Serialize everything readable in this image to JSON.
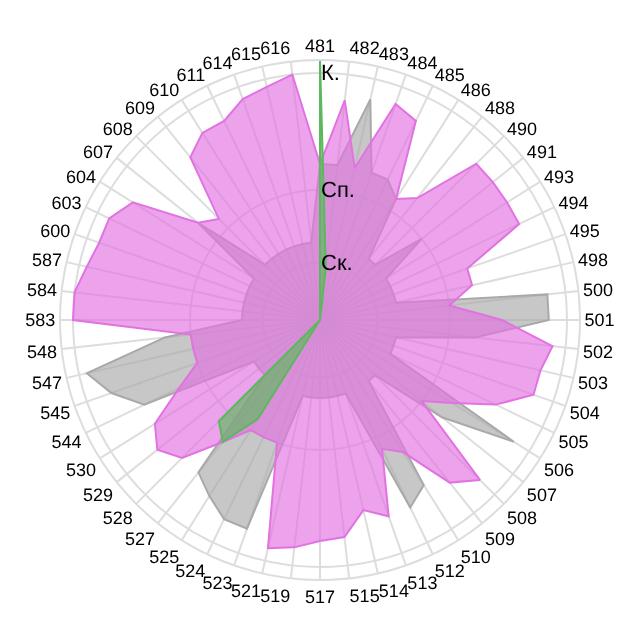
{
  "chart_data": {
    "type": "radar",
    "categories": [
      "481",
      "482",
      "483",
      "484",
      "485",
      "486",
      "488",
      "490",
      "491",
      "493",
      "494",
      "495",
      "498",
      "500",
      "501",
      "502",
      "503",
      "504",
      "505",
      "506",
      "507",
      "508",
      "509",
      "510",
      "512",
      "513",
      "514",
      "515",
      "517",
      "519",
      "521",
      "523",
      "524",
      "525",
      "527",
      "528",
      "529",
      "530",
      "544",
      "545",
      "547",
      "548",
      "583",
      "584",
      "587",
      "600",
      "603",
      "604",
      "607",
      "608",
      "609",
      "610",
      "611",
      "614",
      "615",
      "616"
    ],
    "ylim": [
      0,
      1
    ],
    "yticks": [
      {
        "value": 0.22,
        "label": "Ск."
      },
      {
        "value": 0.5,
        "label": "Сп."
      },
      {
        "value": 0.95,
        "label": "К."
      }
    ],
    "grid": true,
    "marker": "none",
    "series": [
      {
        "color": "#a9a9a9",
        "values": [
          0.6,
          0.6,
          0.87,
          0.6,
          0.6,
          0.55,
          0.3,
          0.3,
          0.5,
          0.3,
          0.3,
          0.3,
          0.3,
          0.88,
          0.88,
          0.6,
          0.3,
          0.3,
          0.3,
          0.88,
          0.6,
          0.3,
          0.3,
          0.75,
          0.8,
          0.3,
          0.3,
          0.3,
          0.3,
          0.3,
          0.3,
          0.85,
          0.85,
          0.8,
          0.75,
          0.3,
          0.3,
          0.3,
          0.75,
          0.85,
          0.92,
          0.6,
          0.3,
          0.3,
          0.3,
          0.3,
          0.3,
          0.3,
          0.6,
          0.3,
          0.3,
          0.3,
          0.3,
          0.3,
          0.3,
          0.3
        ]
      },
      {
        "color": "#e272e2",
        "values": [
          0.6,
          0.85,
          0.6,
          0.88,
          0.85,
          0.55,
          0.6,
          0.85,
          0.85,
          0.85,
          0.85,
          0.6,
          0.6,
          0.5,
          0.7,
          0.9,
          0.87,
          0.87,
          0.75,
          0.6,
          0.5,
          0.87,
          0.8,
          0.6,
          0.55,
          0.8,
          0.75,
          0.84,
          0.85,
          0.88,
          0.9,
          0.5,
          0.5,
          0.5,
          0.6,
          0.75,
          0.8,
          0.75,
          0.6,
          0.5,
          0.5,
          0.5,
          0.95,
          0.95,
          0.92,
          0.9,
          0.9,
          0.85,
          0.6,
          0.55,
          0.8,
          0.85,
          0.85,
          0.9,
          0.92,
          0.95
        ]
      },
      {
        "color": "#5cb85c",
        "values": [
          1.0,
          0.2,
          0.0,
          0.0,
          0.0,
          0.0,
          0.0,
          0.0,
          0.0,
          0.0,
          0.0,
          0.0,
          0.0,
          0.0,
          0.0,
          0.0,
          0.0,
          0.0,
          0.0,
          0.0,
          0.0,
          0.0,
          0.0,
          0.0,
          0.0,
          0.0,
          0.0,
          0.0,
          0.0,
          0.0,
          0.0,
          0.0,
          0.0,
          0.45,
          0.6,
          0.55,
          0.0,
          0.0,
          0.0,
          0.0,
          0.0,
          0.0,
          0.0,
          0.0,
          0.0,
          0.0,
          0.0,
          0.0,
          0.0,
          0.0,
          0.0,
          0.0,
          0.0,
          0.0,
          0.0,
          0.0
        ]
      }
    ]
  }
}
